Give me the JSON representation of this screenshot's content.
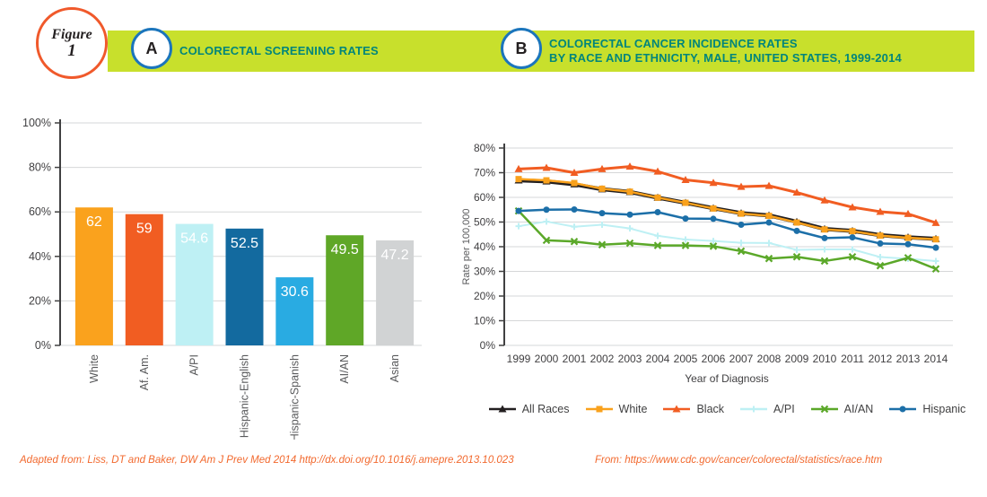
{
  "figure_badge": {
    "line1": "Figure",
    "line2": "1"
  },
  "banner": {
    "bg_color": "#c8e02c",
    "badge_border_color": "#1b75bc",
    "title_color": "#00857b",
    "panel_a": {
      "badge": "A",
      "title": "COLORECTAL SCREENING RATES"
    },
    "panel_b": {
      "badge": "B",
      "title_line1": "COLORECTAL CANCER INCIDENCE RATES",
      "title_line2": "BY RACE AND ETHNICITY, MALE, UNITED STATES, 1999-2014"
    }
  },
  "chart_data": [
    {
      "type": "bar",
      "title": "COLORECTAL SCREENING RATES",
      "categories": [
        "White",
        "Af. Am.",
        "A/PI",
        "Hispanic-English",
        "Hispanic-Spanish",
        "AI/AN",
        "Asian"
      ],
      "values": [
        62,
        59,
        54.6,
        52.5,
        30.6,
        49.5,
        47.2
      ],
      "value_labels": [
        "62",
        "59",
        "54.6",
        "52.5",
        "30.6",
        "49.5",
        "47.2"
      ],
      "bar_colors": [
        "#faa21d",
        "#f15d22",
        "#bef0f4",
        "#136a9f",
        "#29abe2",
        "#5fa727",
        "#d1d3d4"
      ],
      "ylim": [
        0,
        100
      ],
      "ytick_step": 20,
      "yticks": [
        "0%",
        "20%",
        "40%",
        "60%",
        "80%",
        "100%"
      ],
      "grid": true,
      "xlabel": "",
      "ylabel": ""
    },
    {
      "type": "line",
      "title": "COLORECTAL CANCER INCIDENCE RATES BY RACE AND ETHNICITY, MALE, UNITED STATES, 1999-2014",
      "x": [
        1999,
        2000,
        2001,
        2002,
        2003,
        2004,
        2005,
        2006,
        2007,
        2008,
        2009,
        2010,
        2011,
        2012,
        2013,
        2014
      ],
      "xlabel": "Year of Diagnosis",
      "ylabel": "Rate per 100,000",
      "ylim": [
        0,
        80
      ],
      "ytick_step": 10,
      "yticks": [
        "0%",
        "10%",
        "20%",
        "30%",
        "40%",
        "50%",
        "60%",
        "70%",
        "80%"
      ],
      "grid": true,
      "legend_position": "bottom",
      "series": [
        {
          "name": "All Races",
          "color": "#231f20",
          "marker": "triangle",
          "line_width": 4.5,
          "values": [
            66.9,
            66.5,
            65.3,
            63.3,
            62.2,
            59.9,
            57.8,
            55.6,
            53.6,
            52.7,
            50.1,
            47.2,
            46.4,
            44.7,
            43.8,
            43.2
          ]
        },
        {
          "name": "White",
          "color": "#f9a11c",
          "marker": "square",
          "line_width": 2.5,
          "values": [
            67.4,
            66.9,
            65.8,
            63.5,
            62.3,
            59.9,
            57.8,
            55.5,
            53.4,
            52.5,
            49.8,
            47.0,
            46.3,
            44.5,
            43.6,
            43.0
          ]
        },
        {
          "name": "Black",
          "color": "#f15d22",
          "marker": "triangle",
          "line_width": 3,
          "values": [
            71.5,
            72.0,
            70.0,
            71.5,
            72.5,
            70.5,
            67.1,
            65.9,
            64.3,
            64.7,
            62.0,
            58.8,
            56.0,
            54.2,
            53.3,
            49.7
          ]
        },
        {
          "name": "A/PI",
          "color": "#bef0f4",
          "marker": "plus",
          "line_width": 2,
          "values": [
            48.3,
            50.2,
            48.1,
            48.9,
            47.4,
            44.4,
            42.9,
            42.3,
            41.6,
            41.5,
            38.7,
            38.9,
            38.9,
            35.8,
            35.1,
            34.2
          ]
        },
        {
          "name": "AI/AN",
          "color": "#5ba829",
          "marker": "x",
          "line_width": 2.5,
          "values": [
            54.5,
            42.6,
            42.1,
            40.8,
            41.4,
            40.5,
            40.5,
            40.2,
            38.2,
            35.2,
            35.9,
            34.2,
            35.9,
            32.3,
            35.5,
            31.0
          ]
        },
        {
          "name": "Hispanic",
          "color": "#1c6fa8",
          "marker": "circle",
          "line_width": 2.5,
          "values": [
            54.5,
            55.0,
            55.1,
            53.6,
            53.0,
            54.0,
            51.4,
            51.3,
            48.9,
            49.8,
            46.4,
            43.5,
            43.8,
            41.3,
            41.0,
            39.6
          ]
        }
      ],
      "draw_order": [
        "A/PI",
        "AI/AN",
        "Hispanic",
        "All Races",
        "White",
        "Black"
      ],
      "legend_order": [
        "All Races",
        "White",
        "Black",
        "A/PI",
        "AI/AN",
        "Hispanic"
      ]
    }
  ],
  "footnotes": {
    "left": "Adapted from: Liss, DT and Baker, DW Am J Prev Med 2014 http://dx.doi.org/10.1016/j.amepre.2013.10.023",
    "right": "From: https://www.cdc.gov/cancer/colorectal/statistics/race.htm",
    "color": "#f2692e"
  },
  "style_colors": {
    "axis": "#404041",
    "grid": "#d6d7d8",
    "tick_text": "#414042",
    "category_text": "#58595b",
    "bar_value_text": "#ffffff"
  }
}
